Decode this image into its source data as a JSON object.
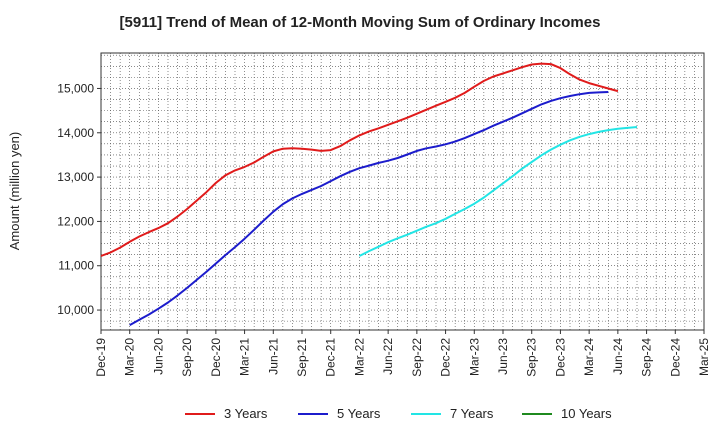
{
  "chart_data": {
    "type": "line",
    "title": "[5911]  Trend of Mean of 12-Month Moving Sum of Ordinary Incomes",
    "ylabel": "Amount (million yen)",
    "xlabel": "",
    "ylim": [
      9550,
      15800
    ],
    "yticks": [
      10000,
      11000,
      12000,
      13000,
      14000,
      15000
    ],
    "ytick_labels": [
      "10,000",
      "11,000",
      "12,000",
      "13,000",
      "14,000",
      "15,000"
    ],
    "x_ticks": [
      "Dec-19",
      "Mar-20",
      "Jun-20",
      "Sep-20",
      "Dec-20",
      "Mar-21",
      "Jun-21",
      "Sep-21",
      "Dec-21",
      "Mar-22",
      "Jun-22",
      "Sep-22",
      "Dec-22",
      "Mar-23",
      "Jun-23",
      "Sep-23",
      "Dec-23",
      "Mar-24",
      "Jun-24",
      "Sep-24",
      "Dec-24",
      "Mar-25"
    ],
    "x_start": "Dec-19",
    "grid": true,
    "legend_position": "bottom",
    "series": [
      {
        "name": "3 Years",
        "color": "#e01b1b",
        "start_month": 0,
        "values": [
          11220,
          11300,
          11410,
          11540,
          11660,
          11760,
          11850,
          11960,
          12110,
          12280,
          12470,
          12660,
          12870,
          13040,
          13150,
          13230,
          13330,
          13460,
          13580,
          13640,
          13650,
          13640,
          13620,
          13590,
          13610,
          13700,
          13830,
          13940,
          14030,
          14100,
          14180,
          14260,
          14340,
          14430,
          14520,
          14610,
          14700,
          14790,
          14900,
          15040,
          15170,
          15270,
          15340,
          15410,
          15480,
          15540,
          15560,
          15550,
          15460,
          15320,
          15200,
          15120,
          15060,
          15000,
          14940
        ]
      },
      {
        "name": "5 Years",
        "color": "#1c1ccc",
        "start_month": 3,
        "values": [
          9660,
          9780,
          9900,
          10030,
          10170,
          10330,
          10500,
          10680,
          10860,
          11050,
          11240,
          11420,
          11610,
          11810,
          12020,
          12220,
          12390,
          12520,
          12620,
          12710,
          12800,
          12910,
          13020,
          13120,
          13200,
          13260,
          13320,
          13370,
          13430,
          13510,
          13590,
          13650,
          13690,
          13740,
          13800,
          13880,
          13970,
          14060,
          14160,
          14250,
          14340,
          14440,
          14540,
          14640,
          14720,
          14780,
          14830,
          14870,
          14900,
          14910,
          14920
        ]
      },
      {
        "name": "7 Years",
        "color": "#22e5e5",
        "start_month": 27,
        "values": [
          11220,
          11330,
          11430,
          11530,
          11620,
          11700,
          11790,
          11880,
          11960,
          12060,
          12170,
          12280,
          12400,
          12540,
          12700,
          12860,
          13020,
          13190,
          13340,
          13490,
          13620,
          13730,
          13830,
          13910,
          13970,
          14020,
          14060,
          14090,
          14110,
          14130
        ]
      },
      {
        "name": "10 Years",
        "color": "#1f8a1f",
        "start_month": 0,
        "values": []
      }
    ]
  }
}
